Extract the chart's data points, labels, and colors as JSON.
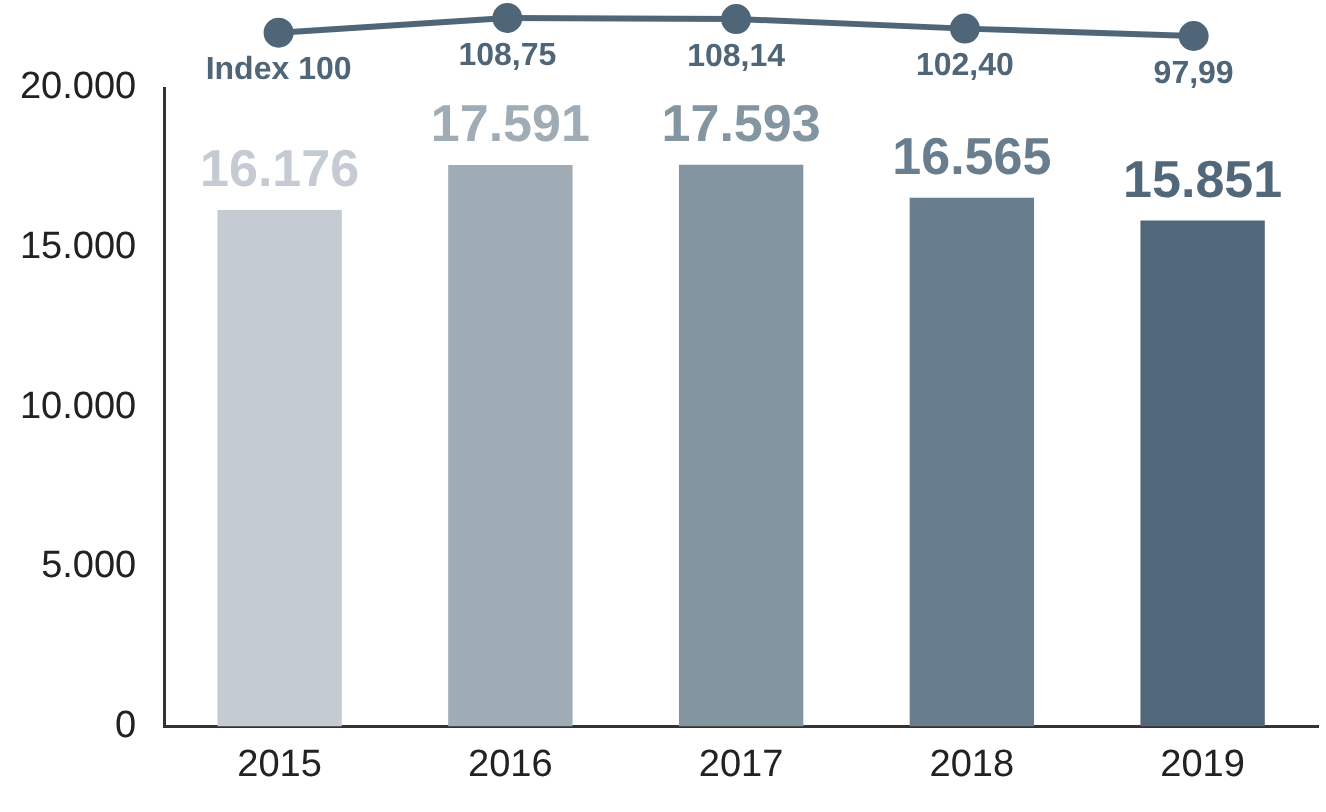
{
  "chart_data": [
    {
      "type": "line",
      "categories": [
        null,
        null,
        null,
        null,
        null
      ],
      "series": [
        {
          "color": "#4f6678",
          "values": [
            100,
            108.75,
            108.14,
            102.4,
            97.99
          ],
          "value_labels": [
            "Index 100",
            "108,75",
            "108,14",
            "102,40",
            "97,99"
          ]
        }
      ],
      "grid": false,
      "legend": false,
      "marker": "circle",
      "line_style": "solid"
    },
    {
      "type": "bar",
      "categories": [
        "2015",
        "2016",
        "2017",
        "2018",
        "2019"
      ],
      "series": [
        {
          "colors": [
            "#c5cbd2",
            "#a0acb5",
            "#8295a1",
            "#687d8d",
            "#51687b"
          ],
          "values": [
            16176,
            17591,
            17593,
            16565,
            15851
          ],
          "value_labels": [
            "16.176",
            "17.591",
            "17.593",
            "16.565",
            "15.851"
          ]
        }
      ],
      "ylim": [
        0,
        20000
      ],
      "yticks": [
        {
          "value": 0,
          "label": "0"
        },
        {
          "value": 5000,
          "label": "5.000"
        },
        {
          "value": 10000,
          "label": "10.000"
        },
        {
          "value": 15000,
          "label": "15.000"
        },
        {
          "value": 20000,
          "label": "20.000"
        }
      ],
      "grid": false,
      "legend": false
    }
  ]
}
